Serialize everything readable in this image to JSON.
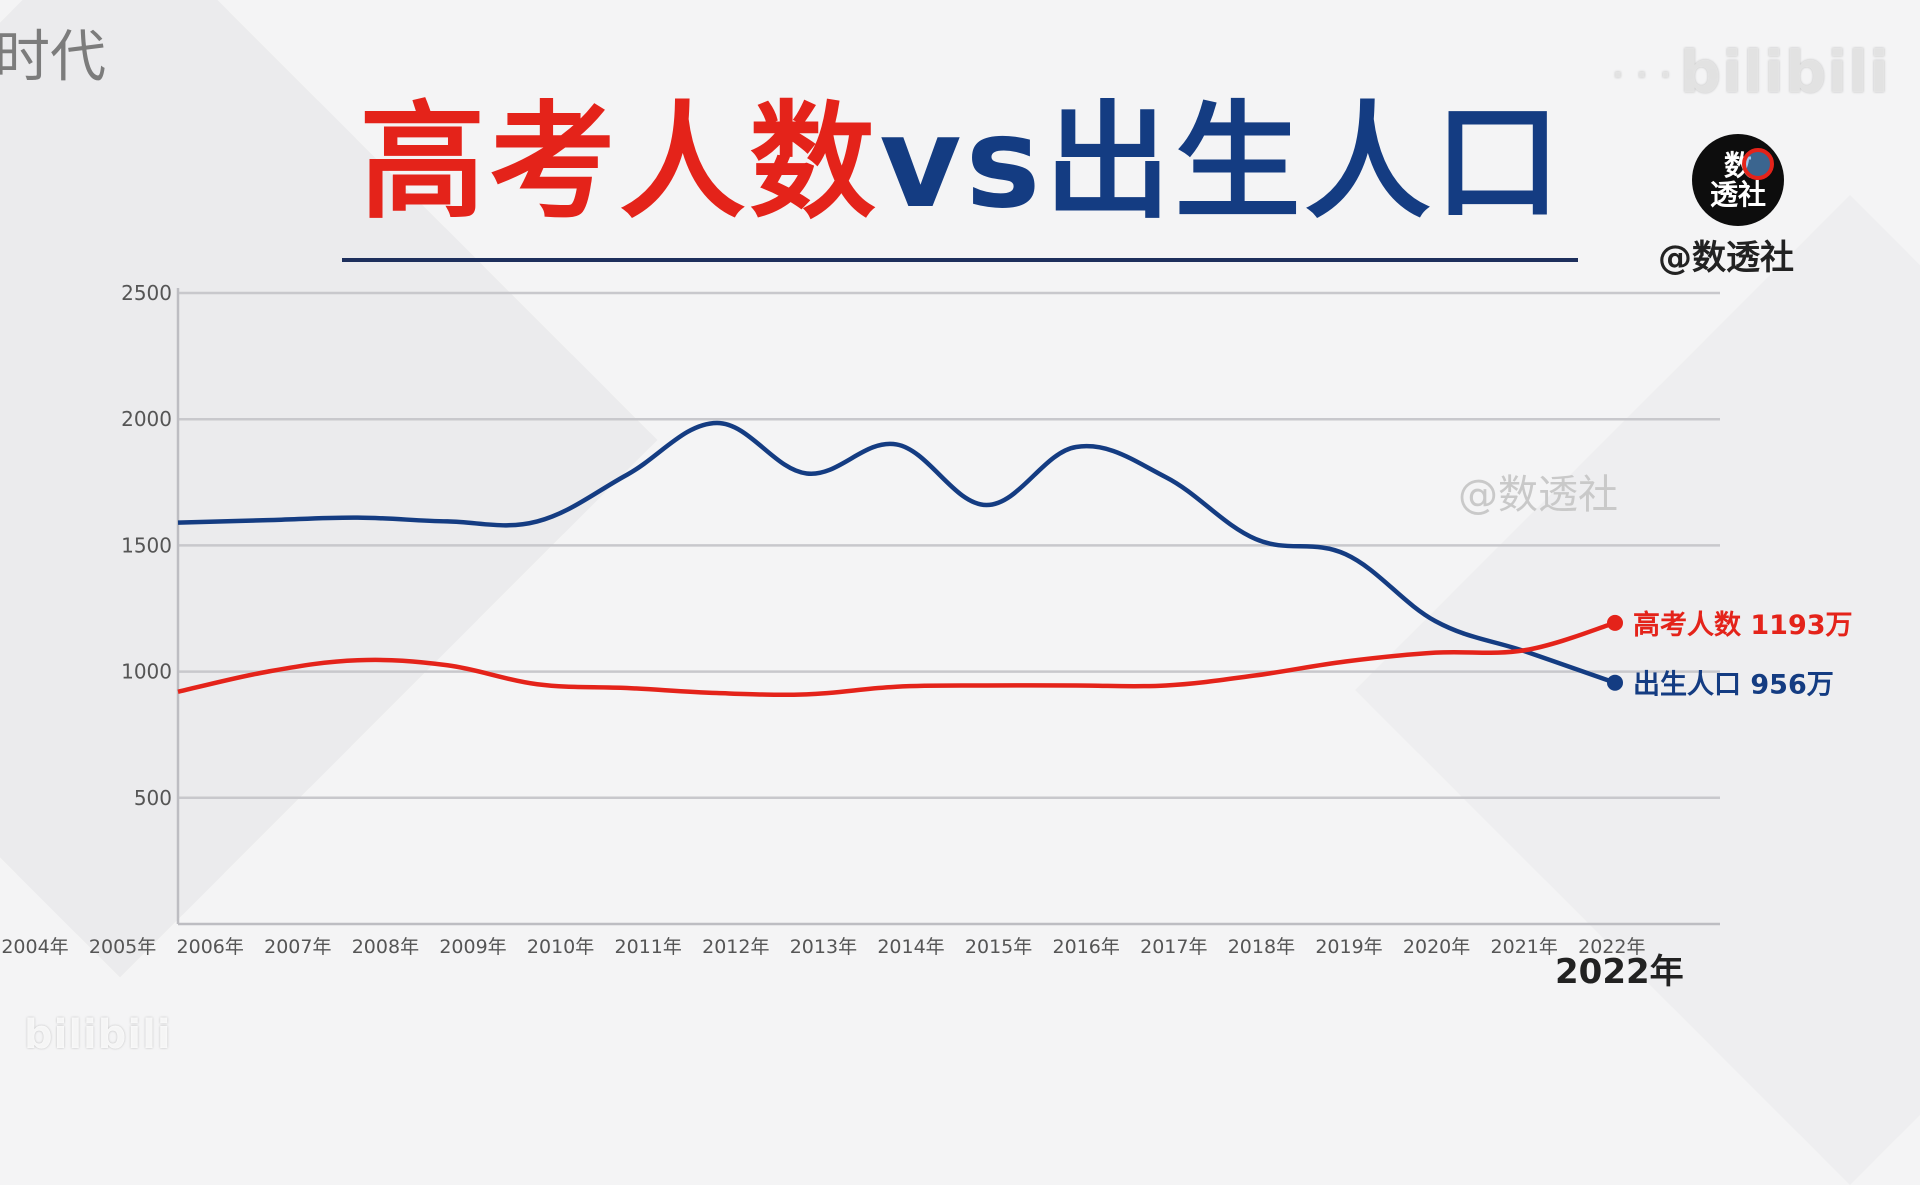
{
  "corner_text": "时代",
  "platform_logo_top": "bilibili",
  "platform_logo_top_small": "· · · · ·",
  "platform_logo_bottom": "bilibili",
  "title": {
    "part1": "高考人数",
    "part2": "vs",
    "part3": "出生人口",
    "color_red": "#e4231a",
    "color_blue": "#143c82"
  },
  "brand": {
    "logo_text_line1": "数",
    "logo_text_line2": "透社",
    "handle": "@数透社",
    "watermark": "@数透社"
  },
  "year_caption": "2022年",
  "chart_data": {
    "type": "line",
    "title": "高考人数vs出生人口",
    "ylim": [
      0,
      2500
    ],
    "yticks": [
      500,
      1000,
      1500,
      2000,
      2500
    ],
    "grid": true,
    "x_tick_labels": [
      "2004年",
      "2005年",
      "2006年",
      "2007年",
      "2008年",
      "2009年",
      "2010年",
      "2011年",
      "2012年",
      "2013年",
      "2014年",
      "2015年",
      "2016年",
      "2017年",
      "2018年",
      "2019年",
      "2020年",
      "2021年",
      "2022年"
    ],
    "x": [
      2006,
      2007,
      2008,
      2009,
      2010,
      2011,
      2012,
      2013,
      2014,
      2015,
      2016,
      2017,
      2018,
      2019,
      2020,
      2021,
      2022
    ],
    "series": [
      {
        "name": "出生人口",
        "end_label": "出生人口 956万",
        "color": "#143c82",
        "values": [
          1590,
          1600,
          1610,
          1595,
          1595,
          1780,
          1985,
          1785,
          1900,
          1660,
          1890,
          1770,
          1525,
          1465,
          1200,
          1080,
          956
        ]
      },
      {
        "name": "高考人数",
        "end_label": "高考人数 1193万",
        "color": "#e4231a",
        "values": [
          920,
          1000,
          1045,
          1025,
          950,
          935,
          915,
          910,
          940,
          945,
          945,
          945,
          985,
          1040,
          1075,
          1085,
          1193
        ]
      }
    ]
  }
}
